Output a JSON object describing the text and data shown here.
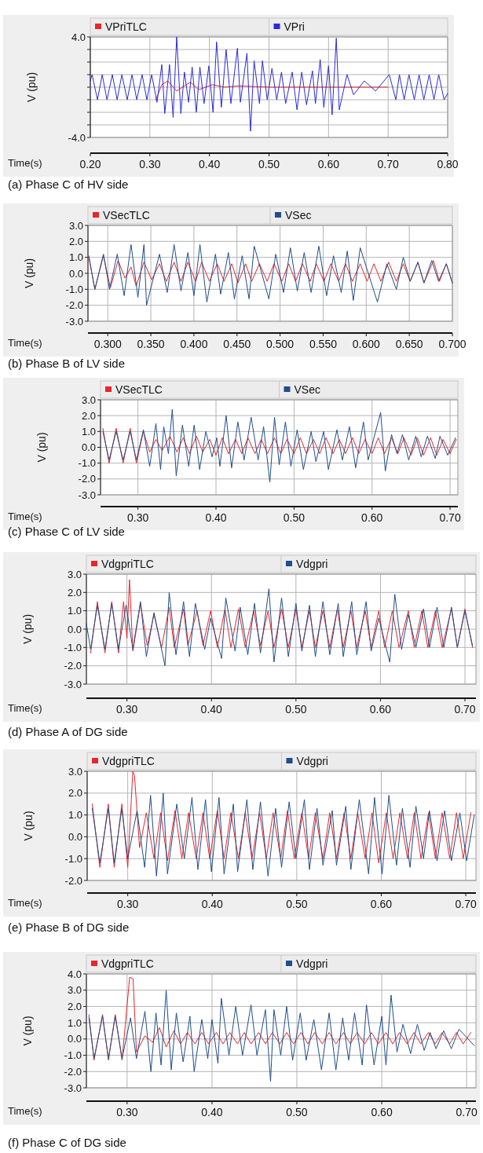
{
  "chart_data": [
    {
      "type": "line",
      "title": "(a) Phase C of HV side",
      "xlabel": "Time(s)",
      "ylabel": "V (pu)",
      "xlim": [
        0.2,
        0.8
      ],
      "ylim": [
        -4,
        4
      ],
      "grid": true,
      "legend": "top",
      "xticks": [
        {
          "value": 0.2,
          "label": "0.20"
        },
        {
          "value": 0.3,
          "label": "0.30"
        },
        {
          "value": 0.4,
          "label": "0.40"
        },
        {
          "value": 0.5,
          "label": "0.50"
        },
        {
          "value": 0.6,
          "label": "0.60"
        },
        {
          "value": 0.7,
          "label": "0.70"
        },
        {
          "value": 0.8,
          "label": "0.80"
        }
      ],
      "yticks": [
        {
          "value": -4,
          "label": "-4.0"
        },
        {
          "value": -3,
          "label": null
        },
        {
          "value": -2,
          "label": null
        },
        {
          "value": -1,
          "label": null
        },
        {
          "value": 0,
          "label": null
        },
        {
          "value": 1,
          "label": null
        },
        {
          "value": 2,
          "label": null
        },
        {
          "value": 3,
          "label": null
        },
        {
          "value": 4,
          "label": "4.0"
        }
      ],
      "series": [
        {
          "name": "VPriTLC",
          "color": "#e8262b",
          "x": [
            0.31,
            0.32,
            0.33,
            0.345,
            0.368,
            0.382,
            0.405,
            0.425,
            0.45,
            0.5,
            0.6,
            0.7
          ],
          "values": [
            -1.0,
            0.2,
            0.5,
            -0.3,
            0.4,
            -0.2,
            0.2,
            0.0,
            0.1,
            0.0,
            0.0,
            0.0
          ]
        },
        {
          "name": "VPri",
          "color": "#2b2bd6",
          "x": [
            0.2,
            0.203,
            0.212,
            0.22,
            0.228,
            0.237,
            0.245,
            0.253,
            0.262,
            0.27,
            0.278,
            0.287,
            0.295,
            0.303,
            0.312,
            0.32,
            0.325,
            0.333,
            0.339,
            0.345,
            0.352,
            0.358,
            0.365,
            0.371,
            0.378,
            0.384,
            0.391,
            0.399,
            0.406,
            0.412,
            0.42,
            0.428,
            0.436,
            0.447,
            0.452,
            0.463,
            0.469,
            0.475,
            0.484,
            0.489,
            0.497,
            0.505,
            0.513,
            0.521,
            0.528,
            0.539,
            0.547,
            0.555,
            0.563,
            0.573,
            0.578,
            0.586,
            0.592,
            0.6,
            0.606,
            0.613,
            0.618,
            0.631,
            0.642,
            0.66,
            0.679,
            0.702,
            0.713,
            0.719,
            0.727,
            0.735,
            0.744,
            0.752,
            0.76,
            0.769,
            0.777,
            0.785,
            0.794,
            0.8
          ],
          "values": [
            0.5,
            1.0,
            -1.0,
            1.0,
            -1.0,
            1.0,
            -1.0,
            1.0,
            -1.0,
            1.0,
            -1.0,
            1.0,
            -1.0,
            1.0,
            -1.2,
            1.8,
            -2.1,
            1.8,
            -2.4,
            4.0,
            -2.1,
            1.2,
            -1.2,
            1.6,
            -2.0,
            1.6,
            -1.3,
            1.7,
            -2.0,
            3.6,
            -1.6,
            3.0,
            -1.3,
            3.1,
            -1.2,
            2.7,
            -3.5,
            2.1,
            -1.3,
            2.1,
            -1.0,
            1.5,
            -1.0,
            1.2,
            -1.3,
            1.2,
            -1.8,
            1.2,
            -1.4,
            1.3,
            -1.3,
            2.2,
            -1.6,
            1.7,
            -2.2,
            3.9,
            -1.8,
            1.0,
            -0.6,
            0.5,
            -0.3,
            1.0,
            -1.0,
            1.0,
            -1.0,
            1.0,
            -1.0,
            1.0,
            -1.0,
            1.0,
            -1.0,
            1.0,
            -1.0,
            -0.5
          ]
        }
      ]
    },
    {
      "type": "line",
      "title": "(b) Phase B of LV side",
      "xlabel": "Time(s)",
      "ylabel": "V (pu)",
      "xlim": [
        0.277,
        0.7
      ],
      "ylim": [
        -3,
        3
      ],
      "grid": true,
      "legend": "top",
      "xticks": [
        {
          "value": 0.3,
          "label": "0.300"
        },
        {
          "value": 0.35,
          "label": "0.350"
        },
        {
          "value": 0.4,
          "label": "0.400"
        },
        {
          "value": 0.45,
          "label": "0.450"
        },
        {
          "value": 0.5,
          "label": "0.500"
        },
        {
          "value": 0.55,
          "label": "0.550"
        },
        {
          "value": 0.6,
          "label": "0.600"
        },
        {
          "value": 0.65,
          "label": "0.650"
        },
        {
          "value": 0.7,
          "label": "0.700"
        }
      ],
      "yticks": [
        {
          "value": -3,
          "label": "-3.0"
        },
        {
          "value": -2,
          "label": "-2.0"
        },
        {
          "value": -1,
          "label": "-1.0"
        },
        {
          "value": 0,
          "label": "0.0"
        },
        {
          "value": 1,
          "label": "1.0"
        },
        {
          "value": 2,
          "label": "2.0"
        },
        {
          "value": 3,
          "label": "3.0"
        }
      ],
      "series": [
        {
          "name": "VSecTLC",
          "color": "#e8262b",
          "x": [
            0.278,
            0.285,
            0.295,
            0.303,
            0.312,
            0.32,
            0.327,
            0.333,
            0.342,
            0.351,
            0.36,
            0.368,
            0.377,
            0.385,
            0.393,
            0.402,
            0.409,
            0.418,
            0.427,
            0.435,
            0.444,
            0.451,
            0.46,
            0.467,
            0.476,
            0.485,
            0.493,
            0.502,
            0.51,
            0.518,
            0.526,
            0.535,
            0.542,
            0.551,
            0.559,
            0.568,
            0.576,
            0.584,
            0.593,
            0.601,
            0.609,
            0.617,
            0.626,
            0.635,
            0.643,
            0.651,
            0.66,
            0.667,
            0.678,
            0.685,
            0.693,
            0.7
          ],
          "values": [
            1.0,
            -1.0,
            1.1,
            -0.9,
            0.8,
            -0.3,
            0.4,
            -0.8,
            0.7,
            -0.4,
            0.6,
            -0.5,
            0.7,
            -0.5,
            0.7,
            -0.5,
            0.7,
            -0.5,
            0.6,
            -0.5,
            0.6,
            -0.6,
            0.6,
            -0.5,
            0.6,
            -0.5,
            0.6,
            -0.5,
            0.6,
            -0.5,
            0.6,
            -0.5,
            0.6,
            -0.5,
            0.6,
            -0.5,
            0.6,
            -0.5,
            0.6,
            -0.5,
            0.6,
            -0.5,
            0.7,
            -0.5,
            0.6,
            -0.5,
            0.7,
            -0.6,
            0.8,
            -0.5,
            0.6,
            -0.6
          ]
        },
        {
          "name": "VSec",
          "color": "#1f4e8c",
          "x": [
            0.278,
            0.285,
            0.295,
            0.302,
            0.311,
            0.319,
            0.327,
            0.335,
            0.342,
            0.345,
            0.36,
            0.369,
            0.377,
            0.385,
            0.393,
            0.4,
            0.407,
            0.415,
            0.425,
            0.431,
            0.44,
            0.447,
            0.456,
            0.464,
            0.47,
            0.487,
            0.495,
            0.504,
            0.512,
            0.52,
            0.528,
            0.536,
            0.545,
            0.554,
            0.562,
            0.571,
            0.578,
            0.585,
            0.593,
            0.613,
            0.624,
            0.635,
            0.643,
            0.651,
            0.66,
            0.667,
            0.676,
            0.684,
            0.693,
            0.7
          ],
          "values": [
            1.1,
            -1.0,
            1.2,
            -1.0,
            1.2,
            -1.4,
            1.8,
            -1.5,
            1.8,
            -2.0,
            1.2,
            -1.2,
            1.8,
            -1.1,
            1.3,
            -1.4,
            1.8,
            -1.8,
            1.2,
            -1.3,
            1.3,
            -1.6,
            1.1,
            -1.6,
            1.7,
            -1.6,
            1.2,
            -1.2,
            1.6,
            -1.1,
            1.3,
            -1.2,
            1.7,
            -1.4,
            1.1,
            -1.2,
            1.4,
            -1.7,
            1.6,
            -1.8,
            0.6,
            -1.0,
            1.0,
            -0.5,
            0.7,
            -0.6,
            0.8,
            -0.5,
            0.6,
            -0.6
          ]
        }
      ]
    },
    {
      "type": "line",
      "title": "(c) Phase C of LV side",
      "xlabel": "Time(s)",
      "ylabel": "V (pu)",
      "xlim": [
        0.252,
        0.71
      ],
      "ylim": [
        -3,
        3
      ],
      "grid": true,
      "legend": "top",
      "xticks": [
        {
          "value": 0.3,
          "label": "0.30"
        },
        {
          "value": 0.4,
          "label": "0.40"
        },
        {
          "value": 0.5,
          "label": "0.50"
        },
        {
          "value": 0.6,
          "label": "0.60"
        },
        {
          "value": 0.7,
          "label": "0.70"
        }
      ],
      "yticks": [
        {
          "value": -3,
          "label": "-3.0"
        },
        {
          "value": -2,
          "label": "-2.0"
        },
        {
          "value": -1,
          "label": "-1.0"
        },
        {
          "value": 0,
          "label": "0.0"
        },
        {
          "value": 1,
          "label": "1.0"
        },
        {
          "value": 2,
          "label": "2.0"
        },
        {
          "value": 3,
          "label": "3.0"
        }
      ],
      "series": [
        {
          "name": "VSecTLC",
          "color": "#e8262b",
          "x": [
            0.255,
            0.263,
            0.272,
            0.281,
            0.29,
            0.298,
            0.307,
            0.315,
            0.323,
            0.331,
            0.341,
            0.35,
            0.358,
            0.366,
            0.375,
            0.383,
            0.392,
            0.4,
            0.408,
            0.416,
            0.425,
            0.433,
            0.441,
            0.45,
            0.458,
            0.466,
            0.475,
            0.483,
            0.491,
            0.5,
            0.508,
            0.516,
            0.525,
            0.533,
            0.541,
            0.55,
            0.558,
            0.566,
            0.575,
            0.583,
            0.591,
            0.6,
            0.608,
            0.616,
            0.625,
            0.633,
            0.641,
            0.65,
            0.658,
            0.666,
            0.675,
            0.683,
            0.691,
            0.7,
            0.708
          ],
          "values": [
            1.2,
            -1.0,
            1.2,
            -1.0,
            1.2,
            -1.0,
            1.0,
            -0.3,
            0.5,
            -0.2,
            0.7,
            -0.3,
            0.6,
            -0.4,
            0.7,
            -0.3,
            0.5,
            -0.5,
            0.6,
            -0.4,
            0.5,
            -0.4,
            0.6,
            -0.4,
            0.5,
            -0.4,
            0.6,
            -0.4,
            0.5,
            -0.4,
            0.6,
            -0.4,
            0.5,
            -0.4,
            0.6,
            -0.4,
            0.5,
            -0.4,
            0.6,
            -0.4,
            0.5,
            -0.4,
            0.6,
            -0.4,
            0.6,
            -0.4,
            0.6,
            -0.5,
            0.6,
            -0.5,
            0.6,
            -0.5,
            0.5,
            -0.4,
            0.5
          ]
        },
        {
          "name": "VSec",
          "color": "#1f4e8c",
          "x": [
            0.255,
            0.263,
            0.272,
            0.281,
            0.29,
            0.298,
            0.307,
            0.315,
            0.323,
            0.329,
            0.333,
            0.339,
            0.344,
            0.349,
            0.357,
            0.365,
            0.372,
            0.379,
            0.387,
            0.395,
            0.401,
            0.405,
            0.413,
            0.42,
            0.428,
            0.436,
            0.445,
            0.454,
            0.461,
            0.469,
            0.475,
            0.481,
            0.489,
            0.496,
            0.504,
            0.512,
            0.522,
            0.528,
            0.538,
            0.544,
            0.555,
            0.562,
            0.571,
            0.579,
            0.589,
            0.595,
            0.611,
            0.617,
            0.625,
            0.632,
            0.639,
            0.647,
            0.656,
            0.663,
            0.671,
            0.681,
            0.687,
            0.697,
            0.707
          ],
          "values": [
            1.0,
            -0.8,
            1.0,
            -0.8,
            1.0,
            -0.8,
            1.1,
            -1.2,
            1.5,
            -1.4,
            1.3,
            -0.4,
            2.4,
            -1.8,
            1.4,
            -1.2,
            1.4,
            -1.4,
            1.0,
            -0.6,
            0.6,
            -1.2,
            2.0,
            -1.3,
            1.6,
            -0.8,
            1.9,
            -0.8,
            1.3,
            -2.2,
            1.9,
            -1.1,
            1.6,
            -1.2,
            1.1,
            -1.4,
            1.0,
            -0.9,
            1.0,
            -1.4,
            1.1,
            -0.8,
            1.3,
            -1.3,
            1.6,
            -0.8,
            2.2,
            -1.5,
            0.8,
            -0.4,
            0.8,
            -0.8,
            0.7,
            -0.6,
            0.7,
            -0.7,
            0.7,
            -0.5,
            0.6
          ]
        }
      ]
    },
    {
      "type": "line",
      "title": "(d) Phase A of DG side",
      "xlabel": "Time(s)",
      "ylabel": "V (pu)",
      "xlim": [
        0.252,
        0.713
      ],
      "ylim": [
        -3,
        3
      ],
      "grid": true,
      "legend": "top",
      "xticks": [
        {
          "value": 0.3,
          "label": "0.30"
        },
        {
          "value": 0.4,
          "label": "0.40"
        },
        {
          "value": 0.5,
          "label": "0.50"
        },
        {
          "value": 0.6,
          "label": "0.60"
        },
        {
          "value": 0.7,
          "label": "0.70"
        }
      ],
      "yticks": [
        {
          "value": -3,
          "label": "-3.0"
        },
        {
          "value": -2,
          "label": "-2.0"
        },
        {
          "value": -1,
          "label": "-1.0"
        },
        {
          "value": 0,
          "label": "0.0"
        },
        {
          "value": 1,
          "label": "1.0"
        },
        {
          "value": 2,
          "label": "2.0"
        },
        {
          "value": 3,
          "label": "3.0"
        }
      ],
      "series": [
        {
          "name": "VdgpriTLC",
          "color": "#e8262b",
          "x": [
            0.257,
            0.265,
            0.274,
            0.282,
            0.29,
            0.296,
            0.3,
            0.303,
            0.307,
            0.316,
            0.324,
            0.332,
            0.341,
            0.35,
            0.356,
            0.367,
            0.372,
            0.383,
            0.39,
            0.399,
            0.407,
            0.416,
            0.423,
            0.432,
            0.44,
            0.45,
            0.458,
            0.467,
            0.474,
            0.483,
            0.491,
            0.5,
            0.507,
            0.516,
            0.523,
            0.532,
            0.54,
            0.549,
            0.556,
            0.565,
            0.572,
            0.582,
            0.589,
            0.598,
            0.605,
            0.614,
            0.622,
            0.633,
            0.64,
            0.649,
            0.656,
            0.665,
            0.673,
            0.684,
            0.691,
            0.7,
            0.709
          ],
          "values": [
            -1.3,
            1.5,
            -1.3,
            1.5,
            -1.3,
            1.5,
            -0.5,
            2.7,
            -1.2,
            1.4,
            -0.9,
            0.8,
            -1.0,
            1.2,
            -1.0,
            1.1,
            -0.9,
            1.0,
            -0.9,
            1.0,
            -1.0,
            1.1,
            -1.0,
            1.1,
            -1.0,
            1.0,
            -0.9,
            1.0,
            -1.0,
            1.1,
            -1.0,
            1.1,
            -1.0,
            1.0,
            -1.0,
            1.0,
            -1.0,
            1.1,
            -1.0,
            1.0,
            -1.0,
            1.0,
            -1.0,
            1.0,
            -1.0,
            1.0,
            -1.0,
            1.0,
            -1.0,
            1.0,
            -1.0,
            1.0,
            -1.0,
            1.1,
            -1.0,
            1.1,
            -1.0
          ]
        },
        {
          "name": "Vdgpri",
          "color": "#1f4e8c",
          "x": [
            0.252,
            0.257,
            0.265,
            0.274,
            0.282,
            0.29,
            0.299,
            0.307,
            0.316,
            0.323,
            0.332,
            0.345,
            0.35,
            0.358,
            0.367,
            0.374,
            0.381,
            0.392,
            0.399,
            0.412,
            0.417,
            0.428,
            0.434,
            0.443,
            0.451,
            0.458,
            0.468,
            0.474,
            0.483,
            0.491,
            0.5,
            0.507,
            0.516,
            0.523,
            0.532,
            0.54,
            0.55,
            0.556,
            0.566,
            0.572,
            0.583,
            0.589,
            0.598,
            0.611,
            0.617,
            0.625,
            0.633,
            0.642,
            0.651,
            0.658,
            0.667,
            0.675,
            0.684,
            0.691,
            0.7,
            0.709
          ],
          "values": [
            0.3,
            -1.1,
            1.3,
            -1.1,
            1.4,
            -1.1,
            1.3,
            -1.1,
            1.5,
            -1.5,
            0.9,
            -2.0,
            2.0,
            -1.4,
            1.5,
            -1.5,
            1.4,
            -1.1,
            0.6,
            -1.6,
            1.7,
            -1.2,
            1.2,
            -1.4,
            1.4,
            -1.3,
            2.2,
            -1.8,
            1.7,
            -1.5,
            1.4,
            -1.2,
            1.3,
            -1.5,
            1.5,
            -1.4,
            1.4,
            -1.5,
            1.5,
            -1.4,
            1.5,
            -1.2,
            0.6,
            -1.8,
            1.9,
            -1.1,
            0.8,
            -1.0,
            1.1,
            -1.0,
            1.2,
            -1.0,
            1.2,
            -1.0,
            1.0,
            -0.9
          ]
        }
      ]
    },
    {
      "type": "line",
      "title": "(e) Phase B of DG side",
      "xlabel": "Time(s)",
      "ylabel": "V (pu)",
      "xlim": [
        0.252,
        0.712
      ],
      "ylim": [
        -2,
        3
      ],
      "grid": true,
      "legend": "top",
      "xticks": [
        {
          "value": 0.3,
          "label": "0.30"
        },
        {
          "value": 0.4,
          "label": "0.40"
        },
        {
          "value": 0.5,
          "label": "0.50"
        },
        {
          "value": 0.6,
          "label": "0.60"
        },
        {
          "value": 0.7,
          "label": "0.70"
        }
      ],
      "yticks": [
        {
          "value": -2,
          "label": "-2.0"
        },
        {
          "value": -1,
          "label": "-1.0"
        },
        {
          "value": 0,
          "label": "0.0"
        },
        {
          "value": 1,
          "label": "1.0"
        },
        {
          "value": 2,
          "label": "2.0"
        },
        {
          "value": 3,
          "label": "3.0"
        }
      ],
      "series": [
        {
          "name": "VdgpriTLC",
          "color": "#e8262b",
          "x": [
            0.258,
            0.267,
            0.277,
            0.284,
            0.293,
            0.3,
            0.306,
            0.308,
            0.314,
            0.322,
            0.331,
            0.339,
            0.347,
            0.356,
            0.364,
            0.372,
            0.381,
            0.389,
            0.397,
            0.406,
            0.414,
            0.422,
            0.431,
            0.439,
            0.447,
            0.456,
            0.464,
            0.472,
            0.481,
            0.489,
            0.497,
            0.506,
            0.514,
            0.522,
            0.531,
            0.539,
            0.547,
            0.556,
            0.564,
            0.572,
            0.581,
            0.589,
            0.597,
            0.606,
            0.614,
            0.622,
            0.631,
            0.639,
            0.647,
            0.656,
            0.664,
            0.672,
            0.681,
            0.689,
            0.697,
            0.706
          ],
          "values": [
            1.5,
            -1.4,
            1.5,
            -1.4,
            1.5,
            -1.4,
            3.0,
            2.8,
            -0.5,
            1.1,
            -1.0,
            1.1,
            -1.1,
            1.2,
            -1.0,
            1.1,
            -1.0,
            1.1,
            -1.0,
            1.2,
            -1.0,
            1.1,
            -1.0,
            1.1,
            -1.0,
            1.1,
            -1.0,
            1.1,
            -1.0,
            1.2,
            -1.0,
            1.1,
            -1.0,
            1.1,
            -1.0,
            1.1,
            -1.0,
            1.1,
            -1.0,
            1.1,
            -1.0,
            1.1,
            -1.2,
            1.1,
            -1.0,
            1.1,
            -1.0,
            1.1,
            -1.0,
            1.1,
            -1.0,
            1.1,
            -1.0,
            1.1,
            -1.0,
            1.1
          ]
        },
        {
          "name": "Vdgpri",
          "color": "#1f4e8c",
          "x": [
            0.258,
            0.267,
            0.277,
            0.284,
            0.293,
            0.3,
            0.311,
            0.32,
            0.327,
            0.334,
            0.342,
            0.347,
            0.358,
            0.367,
            0.376,
            0.383,
            0.392,
            0.399,
            0.408,
            0.414,
            0.425,
            0.43,
            0.441,
            0.448,
            0.457,
            0.466,
            0.475,
            0.482,
            0.491,
            0.499,
            0.509,
            0.515,
            0.524,
            0.531,
            0.542,
            0.547,
            0.558,
            0.564,
            0.574,
            0.585,
            0.592,
            0.601,
            0.609,
            0.618,
            0.625,
            0.634,
            0.641,
            0.65,
            0.657,
            0.666,
            0.675,
            0.683,
            0.693,
            0.701,
            0.71
          ],
          "values": [
            1.3,
            -1.2,
            1.3,
            -1.2,
            1.3,
            -1.0,
            1.2,
            -1.4,
            1.9,
            -1.8,
            2.0,
            -1.7,
            1.5,
            -1.0,
            1.8,
            -1.5,
            1.7,
            -1.6,
            1.8,
            -1.7,
            1.5,
            -1.6,
            1.7,
            -1.5,
            1.6,
            -1.8,
            1.3,
            -1.4,
            1.6,
            -1.0,
            1.7,
            -1.5,
            1.3,
            -1.3,
            1.2,
            -1.3,
            1.4,
            -1.5,
            1.7,
            -1.7,
            1.8,
            -1.7,
            1.9,
            -1.3,
            1.3,
            -1.4,
            1.4,
            -1.0,
            1.2,
            -1.1,
            1.2,
            -1.1,
            1.1,
            -1.1,
            1.0
          ]
        }
      ]
    },
    {
      "type": "line",
      "title": "(f) Phase C of DG side",
      "xlabel": "Time(s)",
      "ylabel": "V (pu)",
      "xlim": [
        0.252,
        0.711
      ],
      "ylim": [
        -3,
        4
      ],
      "grid": true,
      "legend": "top",
      "xticks": [
        {
          "value": 0.3,
          "label": "0.30"
        },
        {
          "value": 0.4,
          "label": "0.40"
        },
        {
          "value": 0.5,
          "label": "0.50"
        },
        {
          "value": 0.6,
          "label": "0.60"
        },
        {
          "value": 0.7,
          "label": "0.70"
        }
      ],
      "yticks": [
        {
          "value": -3,
          "label": "-3.0"
        },
        {
          "value": -2,
          "label": "-2.0"
        },
        {
          "value": -1,
          "label": "-1.0"
        },
        {
          "value": 0,
          "label": "0.0"
        },
        {
          "value": 1,
          "label": "1.0"
        },
        {
          "value": 2,
          "label": "2.0"
        },
        {
          "value": 3,
          "label": "3.0"
        },
        {
          "value": 4,
          "label": "4.0"
        }
      ],
      "series": [
        {
          "name": "VdgpriTLC",
          "color": "#e8262b",
          "x": [
            0.255,
            0.261,
            0.271,
            0.278,
            0.286,
            0.294,
            0.303,
            0.307,
            0.311,
            0.321,
            0.33,
            0.338,
            0.346,
            0.355,
            0.363,
            0.371,
            0.38,
            0.388,
            0.396,
            0.405,
            0.413,
            0.421,
            0.43,
            0.438,
            0.446,
            0.455,
            0.463,
            0.471,
            0.48,
            0.488,
            0.496,
            0.505,
            0.513,
            0.521,
            0.53,
            0.538,
            0.546,
            0.555,
            0.563,
            0.571,
            0.58,
            0.588,
            0.596,
            0.605,
            0.613,
            0.621,
            0.63,
            0.638,
            0.646,
            0.655,
            0.663,
            0.671,
            0.68,
            0.688,
            0.696,
            0.705
          ],
          "values": [
            1.5,
            -1.3,
            1.5,
            -1.3,
            1.5,
            -1.3,
            3.8,
            3.7,
            -0.8,
            0.2,
            -0.2,
            0.7,
            -0.5,
            0.5,
            -0.3,
            0.4,
            -0.3,
            0.4,
            -0.3,
            0.4,
            -0.3,
            0.4,
            -0.3,
            0.4,
            -0.3,
            0.4,
            -0.3,
            0.4,
            -0.3,
            0.4,
            -0.3,
            0.4,
            -0.3,
            0.4,
            -0.3,
            0.4,
            -0.3,
            0.4,
            -0.3,
            0.4,
            -0.3,
            0.4,
            -0.3,
            0.4,
            -0.3,
            0.4,
            -0.3,
            0.4,
            -0.3,
            0.4,
            -0.3,
            0.4,
            -0.3,
            0.4,
            -0.3,
            0.4
          ]
        },
        {
          "name": "Vdgpri",
          "color": "#1f4e8c",
          "x": [
            0.255,
            0.261,
            0.271,
            0.278,
            0.286,
            0.294,
            0.304,
            0.311,
            0.321,
            0.328,
            0.334,
            0.34,
            0.346,
            0.352,
            0.358,
            0.366,
            0.374,
            0.379,
            0.388,
            0.395,
            0.4,
            0.407,
            0.411,
            0.42,
            0.428,
            0.436,
            0.446,
            0.453,
            0.463,
            0.469,
            0.473,
            0.481,
            0.488,
            0.495,
            0.504,
            0.511,
            0.52,
            0.529,
            0.538,
            0.546,
            0.554,
            0.561,
            0.568,
            0.577,
            0.582,
            0.591,
            0.6,
            0.605,
            0.611,
            0.618,
            0.625,
            0.634,
            0.642,
            0.65,
            0.657,
            0.664,
            0.673,
            0.682,
            0.691,
            0.709
          ],
          "values": [
            1.3,
            -1.2,
            1.4,
            -1.2,
            1.4,
            -1.2,
            1.3,
            -1.2,
            1.7,
            -2.0,
            1.6,
            -1.6,
            3.0,
            -1.9,
            1.6,
            -1.4,
            1.4,
            -2.0,
            1.2,
            -1.2,
            1.2,
            -1.5,
            2.5,
            -1.0,
            2.0,
            -1.0,
            2.1,
            -1.0,
            1.8,
            -2.6,
            1.8,
            -1.0,
            2.0,
            -1.3,
            1.6,
            -1.3,
            1.2,
            -1.9,
            1.6,
            -1.9,
            1.3,
            -1.3,
            1.6,
            -1.6,
            2.1,
            -1.6,
            1.4,
            -1.6,
            2.7,
            -0.8,
            0.9,
            -0.9,
            0.9,
            -0.7,
            0.4,
            -0.6,
            0.5,
            -0.6,
            0.6,
            -0.4
          ]
        }
      ]
    }
  ]
}
